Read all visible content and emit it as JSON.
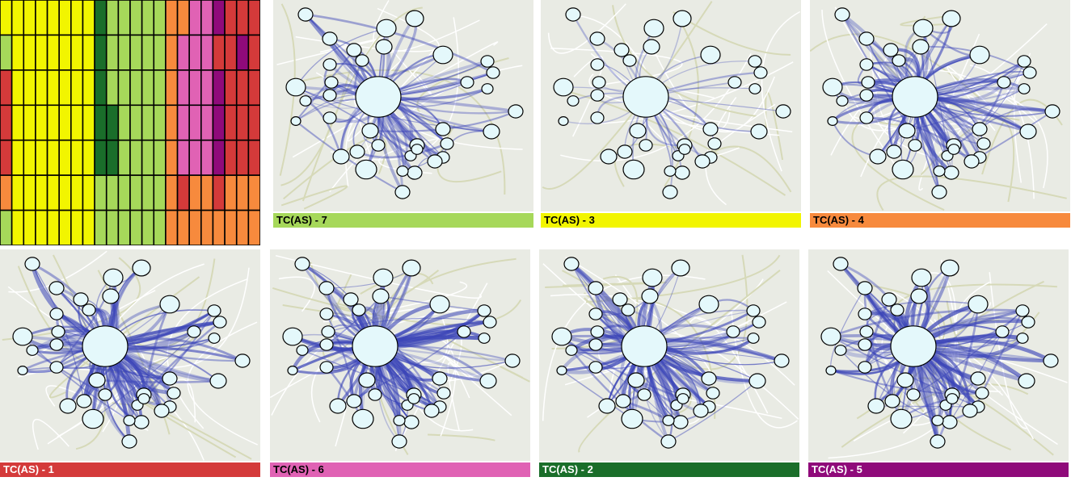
{
  "matrix": {
    "columns": [
      "yellow",
      "yellow",
      "yellow",
      "yellow",
      "yellow",
      "yellow",
      "yellow",
      "yellow",
      "dark-green",
      "light-green",
      "light-green",
      "light-green",
      "light-green",
      "light-green",
      "orange",
      "orange",
      "pink",
      "pink",
      "purple",
      "red",
      "red",
      "red"
    ],
    "colors": {
      "yellow": "#f2f500",
      "light-green": "#a6d85a",
      "dark-green": "#1a6e2a",
      "orange": "#f78a3d",
      "pink": "#e062b4",
      "purple": "#8f0a7a",
      "red": "#d43a3a"
    },
    "rows": [
      [
        "yellow",
        "yellow",
        "yellow",
        "yellow",
        "yellow",
        "yellow",
        "yellow",
        "yellow",
        "dark-green",
        "light-green",
        "light-green",
        "light-green",
        "light-green",
        "light-green",
        "orange",
        "orange",
        "pink",
        "pink",
        "purple",
        "red",
        "red",
        "red"
      ],
      [
        "light-green",
        "yellow",
        "yellow",
        "yellow",
        "yellow",
        "yellow",
        "yellow",
        "yellow",
        "dark-green",
        "light-green",
        "light-green",
        "light-green",
        "light-green",
        "light-green",
        "orange",
        "pink",
        "pink",
        "pink",
        "red",
        "red",
        "purple",
        "red"
      ],
      [
        "red",
        "yellow",
        "yellow",
        "yellow",
        "yellow",
        "yellow",
        "yellow",
        "yellow",
        "dark-green",
        "light-green",
        "light-green",
        "light-green",
        "light-green",
        "light-green",
        "orange",
        "pink",
        "pink",
        "pink",
        "purple",
        "red",
        "red",
        "red"
      ],
      [
        "red",
        "yellow",
        "yellow",
        "yellow",
        "yellow",
        "yellow",
        "yellow",
        "yellow",
        "dark-green",
        "dark-green",
        "light-green",
        "light-green",
        "light-green",
        "light-green",
        "orange",
        "pink",
        "pink",
        "pink",
        "purple",
        "red",
        "red",
        "red"
      ],
      [
        "red",
        "yellow",
        "yellow",
        "yellow",
        "yellow",
        "yellow",
        "yellow",
        "yellow",
        "dark-green",
        "dark-green",
        "light-green",
        "light-green",
        "light-green",
        "light-green",
        "orange",
        "pink",
        "pink",
        "pink",
        "purple",
        "red",
        "red",
        "red"
      ],
      [
        "orange",
        "yellow",
        "yellow",
        "yellow",
        "yellow",
        "yellow",
        "yellow",
        "yellow",
        "light-green",
        "light-green",
        "light-green",
        "light-green",
        "light-green",
        "light-green",
        "orange",
        "red",
        "orange",
        "orange",
        "red",
        "orange",
        "orange",
        "orange"
      ],
      [
        "light-green",
        "yellow",
        "yellow",
        "yellow",
        "yellow",
        "yellow",
        "yellow",
        "yellow",
        "light-green",
        "light-green",
        "light-green",
        "light-green",
        "light-green",
        "light-green",
        "orange",
        "orange",
        "orange",
        "orange",
        "orange",
        "orange",
        "orange",
        "orange"
      ]
    ]
  },
  "panels": [
    {
      "label": "TC(AS) - 7",
      "color": "#a6d85a",
      "density": 0.75
    },
    {
      "label": "TC(AS) - 3",
      "color": "#f2f500",
      "density": 0.35
    },
    {
      "label": "TC(AS) - 4",
      "color": "#f78a3d",
      "density": 0.85
    },
    {
      "label": "TC(AS) - 1",
      "color": "#d43a3a",
      "density": 1.0
    },
    {
      "label": "TC(AS) - 6",
      "color": "#e062b4",
      "density": 1.0
    },
    {
      "label": "TC(AS) - 2",
      "color": "#1a6e2a",
      "density": 0.95
    },
    {
      "label": "TC(AS) - 5",
      "color": "#8f0a7a",
      "density": 1.0
    }
  ]
}
